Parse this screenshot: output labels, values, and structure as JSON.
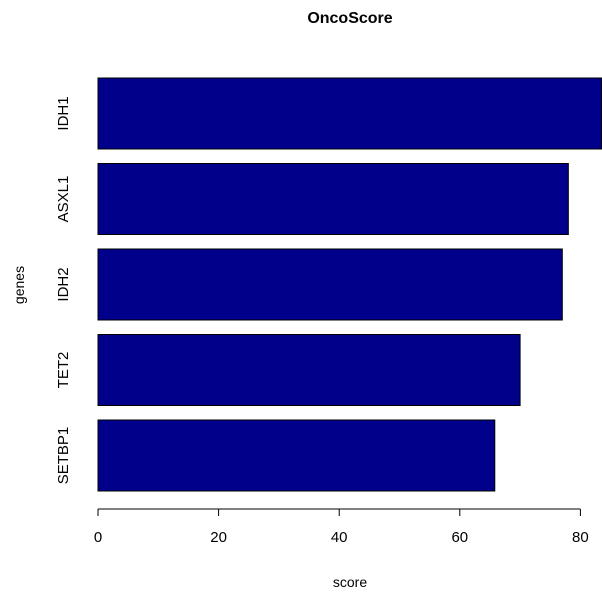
{
  "chart_data": {
    "type": "bar",
    "orientation": "horizontal",
    "title": "OncoScore",
    "xlabel": "score",
    "ylabel": "genes",
    "categories": [
      "IDH1",
      "ASXL1",
      "IDH2",
      "TET2",
      "SETBP1"
    ],
    "values": [
      83.5,
      78,
      77,
      70,
      65.8
    ],
    "x_ticks": [
      0,
      20,
      40,
      60,
      80
    ],
    "xlim": [
      0,
      83.5
    ],
    "bar_color": "#00008B",
    "bar_border_color": "#000000",
    "grid": false,
    "legend": "none"
  }
}
